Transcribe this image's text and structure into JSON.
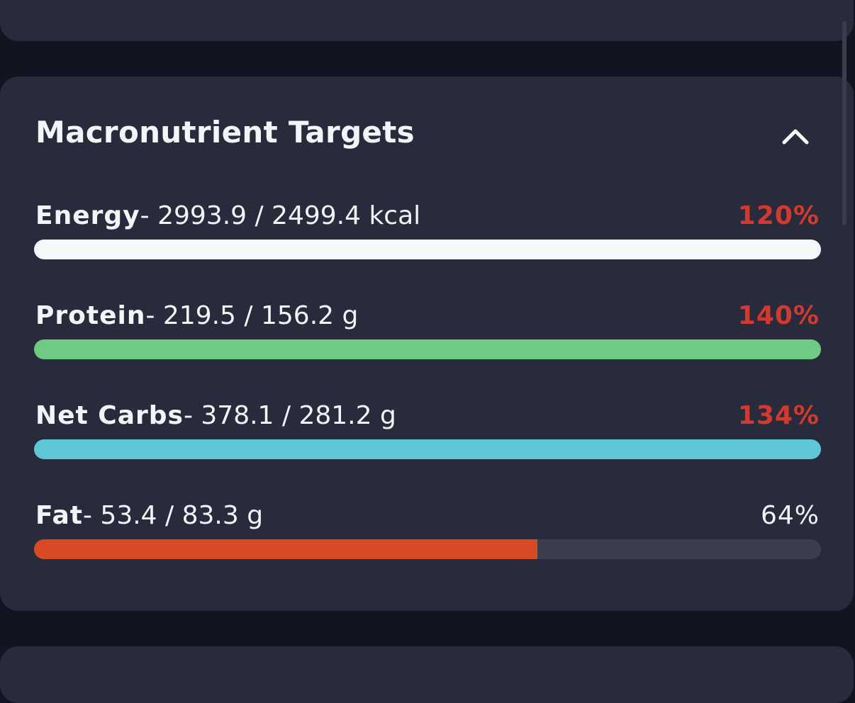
{
  "title": "Macronutrient Targets",
  "items": [
    {
      "name": "Energy",
      "detail": "- 2993.9 / 2499.4 kcal",
      "percent": {
        "value": 120,
        "label": "120%"
      },
      "color": "#f7f8fc",
      "percent_color": "#d3392c"
    },
    {
      "name": "Protein",
      "detail": "- 219.5 / 156.2 g",
      "percent": {
        "value": 140,
        "label": "140%"
      },
      "color": "#6ecb84",
      "percent_color": "#d3392c"
    },
    {
      "name": "Net Carbs",
      "detail": "- 378.1 / 281.2 g",
      "percent": {
        "value": 134,
        "label": "134%"
      },
      "color": "#5ec6d6",
      "percent_color": "#d3392c"
    },
    {
      "name": "Fat",
      "detail": "- 53.4 / 83.3 g",
      "percent": {
        "value": 64,
        "label": "64%"
      },
      "color": "#d84a26",
      "percent_color": "#f2f3f7"
    }
  ]
}
